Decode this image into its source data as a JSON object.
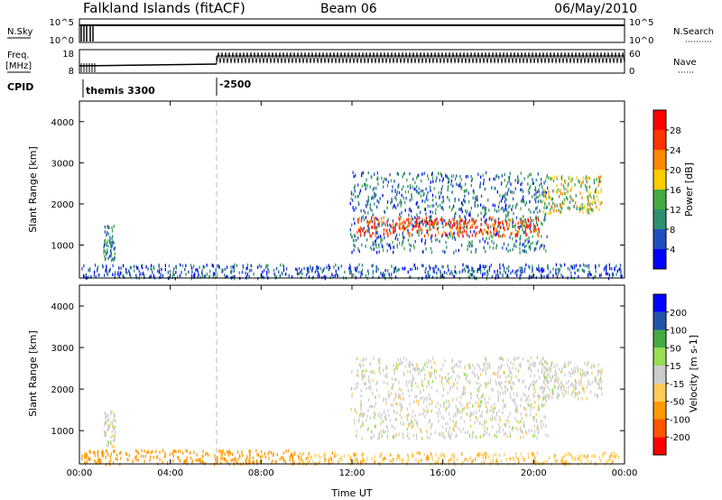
{
  "header": {
    "station": "Falkland Islands (fitACF)",
    "beam": "Beam 06",
    "date": "06/May/2010"
  },
  "strips": {
    "nsky_label": "N.Sky",
    "nsky_ticks": [
      "10^5",
      "10^0"
    ],
    "nsearch_label": "N.Search",
    "nsearch_ticks": [
      "10^5",
      "10^0"
    ],
    "freq_label_1": "Freq.",
    "freq_label_2": "[MHz]",
    "freq_ticks": [
      "18",
      "8"
    ],
    "nave_label": "Nave",
    "nave_ticks": [
      "60",
      "0"
    ],
    "cpid_label": "CPID",
    "cpid_events": [
      {
        "label": "themis 3300",
        "time_h": 0
      },
      {
        "label": "-2500",
        "time_h": 6.0
      }
    ]
  },
  "x_axis": {
    "label": "Time UT",
    "range_h": [
      0,
      24
    ],
    "ticks": [
      "00:00",
      "04:00",
      "08:00",
      "12:00",
      "16:00",
      "20:00",
      "00:00"
    ],
    "tick_hours": [
      0,
      4,
      8,
      12,
      16,
      20,
      24
    ]
  },
  "chart_data": [
    {
      "type": "heatmap",
      "ylabel": "Slant Range [km]",
      "ylim": [
        200,
        4500
      ],
      "yticks": [
        1000,
        2000,
        3000,
        4000
      ],
      "colorbar_label": "Power [dB]",
      "colorbar_ticks": [
        4,
        8,
        12,
        16,
        20,
        24,
        28
      ],
      "colorbar_range": [
        0,
        32
      ],
      "colors": [
        "#0000ff",
        "#1f4fbf",
        "#2f8f6f",
        "#44aa44",
        "#ffcc00",
        "#ff8800",
        "#ff3300",
        "#ff0000"
      ],
      "regions": [
        {
          "t": [
            1.05,
            1.55
          ],
          "r": [
            650,
            1500
          ],
          "value": 10
        },
        {
          "t": [
            11.9,
            20.6
          ],
          "r": [
            850,
            2800
          ],
          "value": 8
        },
        {
          "t": [
            12.2,
            20.2
          ],
          "r": [
            1250,
            1700
          ],
          "value": 26
        },
        {
          "t": [
            20.4,
            23.0
          ],
          "r": [
            1800,
            2700
          ],
          "value": 16
        },
        {
          "t": [
            0.0,
            24.0
          ],
          "r": [
            220,
            560
          ],
          "value": 6
        }
      ]
    },
    {
      "type": "heatmap",
      "ylabel": "Slant Range [km]",
      "ylim": [
        200,
        4500
      ],
      "yticks": [
        1000,
        2000,
        3000,
        4000
      ],
      "colorbar_label": "Velocity [m s-1]",
      "colorbar_ticks": [
        -200,
        -100,
        -50,
        -15,
        15,
        50,
        100,
        200
      ],
      "colors": [
        "#ff0000",
        "#ff5500",
        "#ff9900",
        "#ffcc55",
        "#cccccc",
        "#99dd55",
        "#44aa44",
        "#2255aa",
        "#0000ff"
      ],
      "regions": [
        {
          "t": [
            1.05,
            1.55
          ],
          "r": [
            650,
            1500
          ],
          "value": 0
        },
        {
          "t": [
            11.9,
            20.6
          ],
          "r": [
            850,
            2800
          ],
          "value": 0
        },
        {
          "t": [
            20.4,
            23.0
          ],
          "r": [
            1800,
            2700
          ],
          "value": 0
        },
        {
          "t": [
            0.0,
            9.5
          ],
          "r": [
            220,
            560
          ],
          "value": -80
        },
        {
          "t": [
            9.5,
            24.0
          ],
          "r": [
            220,
            500
          ],
          "value": -40
        }
      ]
    }
  ]
}
